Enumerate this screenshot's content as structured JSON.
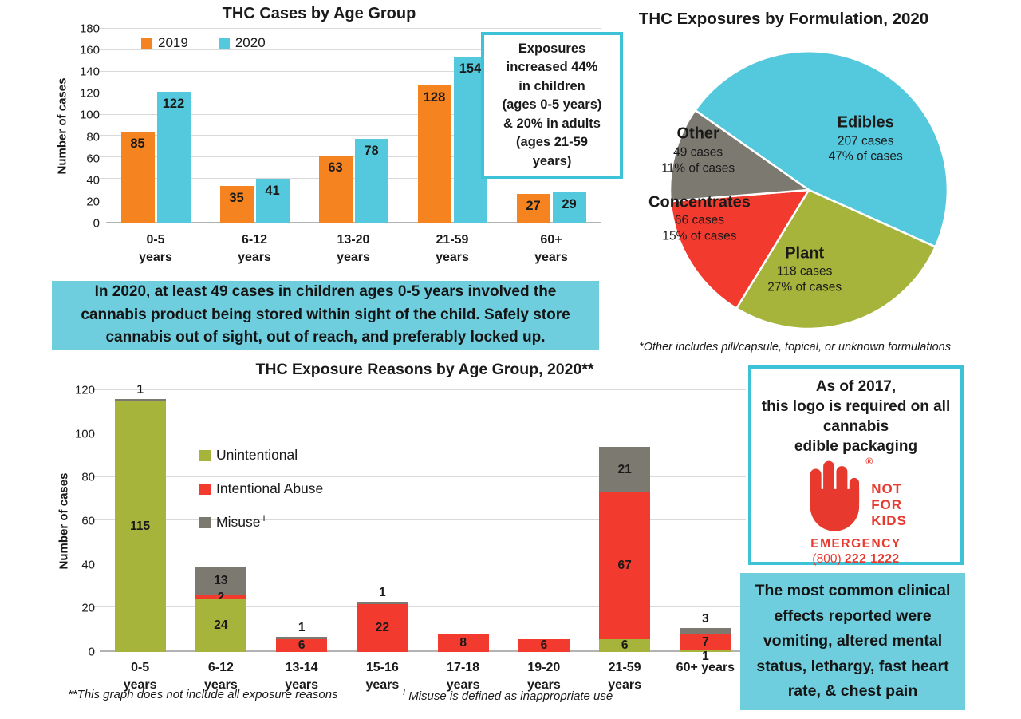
{
  "colors": {
    "orange": "#F5831F",
    "cyan": "#54C8DC",
    "green": "#A6B43C",
    "red": "#F23A2E",
    "gray": "#7C7971",
    "banner_bg": "#6FCEDD",
    "box_border": "#3EC2D8",
    "logo_red": "#E8392E",
    "gridline": "#D9D9D9"
  },
  "chart_data": [
    {
      "type": "bar",
      "title": "THC Cases by Age Group",
      "ylabel": "Number of cases",
      "ylim": [
        0,
        180
      ],
      "ystep": 20,
      "grid": true,
      "legend_position": "top-left",
      "categories": [
        "0-5\nyears",
        "6-12\nyears",
        "13-20\nyears",
        "21-59\nyears",
        "60+\nyears"
      ],
      "series": [
        {
          "name": "2019",
          "color": "orange",
          "values": [
            85,
            35,
            63,
            128,
            27
          ]
        },
        {
          "name": "2020",
          "color": "cyan",
          "values": [
            122,
            41,
            78,
            154,
            29
          ]
        }
      ]
    },
    {
      "type": "pie",
      "title": "THC Exposures by Formulation, 2020",
      "start_angle": 305,
      "slices": [
        {
          "label": "Edibles",
          "value": 207,
          "pct": 47,
          "cases_text": "207 cases",
          "pct_text": "47% of cases",
          "color": "cyan",
          "label_pos": {
            "x": "70%",
            "y": "32%"
          }
        },
        {
          "label": "Plant",
          "value": 118,
          "pct": 27,
          "cases_text": "118 cases",
          "pct_text": "27% of cases",
          "color": "green",
          "label_pos": {
            "x": "48.5%",
            "y": "78%"
          }
        },
        {
          "label": "Concentrates",
          "value": 66,
          "pct": 15,
          "cases_text": "66 cases",
          "pct_text": "15% of cases",
          "color": "red",
          "label_pos": {
            "x": "11.5%",
            "y": "60%"
          }
        },
        {
          "label": "Other",
          "value": 49,
          "pct": 11,
          "cases_text": "49 cases",
          "pct_text": "11% of cases",
          "color": "gray",
          "label_pos": {
            "x": "11%",
            "y": "36%"
          }
        }
      ],
      "footnote": "*Other includes pill/capsule, topical, or unknown formulations"
    },
    {
      "type": "stacked_bar",
      "title": "THC Exposure Reasons by Age Group, 2020**",
      "ylabel": "Number of cases",
      "ylim": [
        0,
        120
      ],
      "ystep": 20,
      "grid": true,
      "legend_position": "inside-left",
      "categories": [
        "0-5\nyears",
        "6-12\nyears",
        "13-14\nyears",
        "15-16\nyears",
        "17-18\nyears",
        "19-20\nyears",
        "21-59\nyears",
        "60+ years"
      ],
      "series": [
        {
          "name": "Unintentional",
          "color": "green",
          "values": [
            115,
            24,
            0,
            0,
            0,
            0,
            6,
            1
          ]
        },
        {
          "name": "Intentional Abuse",
          "color": "red",
          "values": [
            0,
            2,
            6,
            22,
            8,
            6,
            67,
            7
          ]
        },
        {
          "name": "Misuse",
          "name_sup": "I",
          "color": "gray",
          "values": [
            1,
            13,
            1,
            1,
            0,
            0,
            21,
            3
          ]
        }
      ],
      "footnote1": "**This graph does not include all exposure reasons",
      "footnote2_sup": "I",
      "footnote2_text": "Misuse is defined as inappropriate use"
    }
  ],
  "note_box": {
    "text": "Exposures\nincreased 44%\nin children\n(ages 0-5 years)\n& 20% in adults\n(ages 21-59\nyears)"
  },
  "banner": {
    "text": "In 2020, at least 49 cases in children ages 0-5 years involved the\ncannabis product being stored within sight of the child. Safely store\ncannabis out of sight, out of reach, and preferably locked up."
  },
  "logo_box": {
    "text": "As of 2017,\nthis logo is required on all\ncannabis\nedible packaging",
    "registered": "®",
    "logo_lines": [
      "NOT",
      "FOR",
      "KIDS"
    ],
    "emergency": "EMERGENCY",
    "phone_prefix": "(800)",
    "phone_number": "222 1222"
  },
  "clinical_box": {
    "text": "The most common clinical\neffects reported were\nvomiting, altered mental\nstatus, lethargy, fast heart\nrate, & chest pain"
  }
}
